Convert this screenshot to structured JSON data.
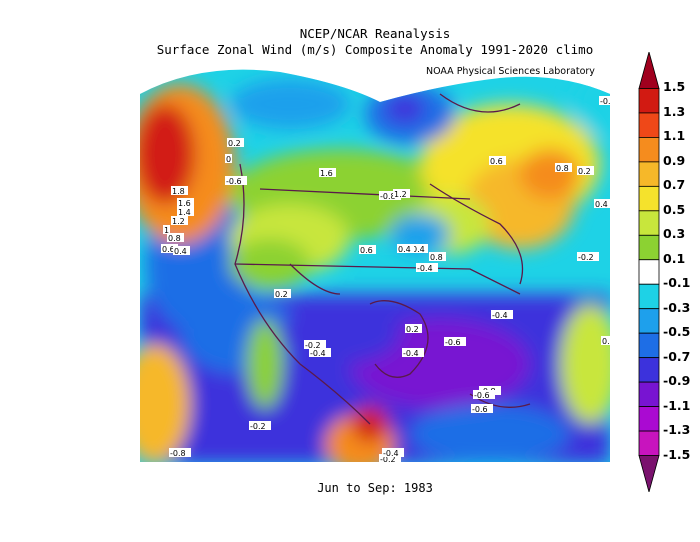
{
  "titles": {
    "line1": "NCEP/NCAR Reanalysis",
    "line2": "Surface Zonal Wind (m/s) Composite Anomaly 1991-2020 climo"
  },
  "organization": "NOAA Physical Sciences Laboratory",
  "period": "Jun to Sep: 1983",
  "colorbar": {
    "labels": [
      "1.5",
      "1.3",
      "1.1",
      "0.9",
      "0.7",
      "0.5",
      "0.3",
      "0.1",
      "-0.1",
      "-0.3",
      "-0.5",
      "-0.7",
      "-0.9",
      "-1.1",
      "-1.3",
      "-1.5"
    ],
    "colors": [
      "#a0001e",
      "#d21a12",
      "#ef4818",
      "#f58c1e",
      "#f6b829",
      "#f5e22c",
      "#c8e63c",
      "#8cd232",
      "#ffffff",
      "#1ed2e6",
      "#1ea0ec",
      "#1e6ee6",
      "#3c32dc",
      "#7814d2",
      "#aa0ad2",
      "#c814be",
      "#7a126e"
    ]
  },
  "contour_labels": [
    "1.8",
    "1.6",
    "1.4",
    "1.2",
    "1",
    "0.8",
    "0.6",
    "0.4",
    "0.2",
    "0",
    "-0.2",
    "-0.4",
    "-0.6",
    "-0.8",
    "1.2",
    "1.6",
    "0.4",
    "0.6",
    "0.8",
    "0.2",
    "-0.2",
    "-0.4",
    "-0.6",
    "-0.4",
    "0.2",
    "0.4",
    "-0.2",
    "0.6",
    "-0.4",
    "-0.6",
    "-0.8",
    "-0.4",
    "0.2",
    "-0.2",
    "0.8",
    "-0.8",
    "-0.6",
    "0.4",
    "-0.2",
    "0.4"
  ]
}
